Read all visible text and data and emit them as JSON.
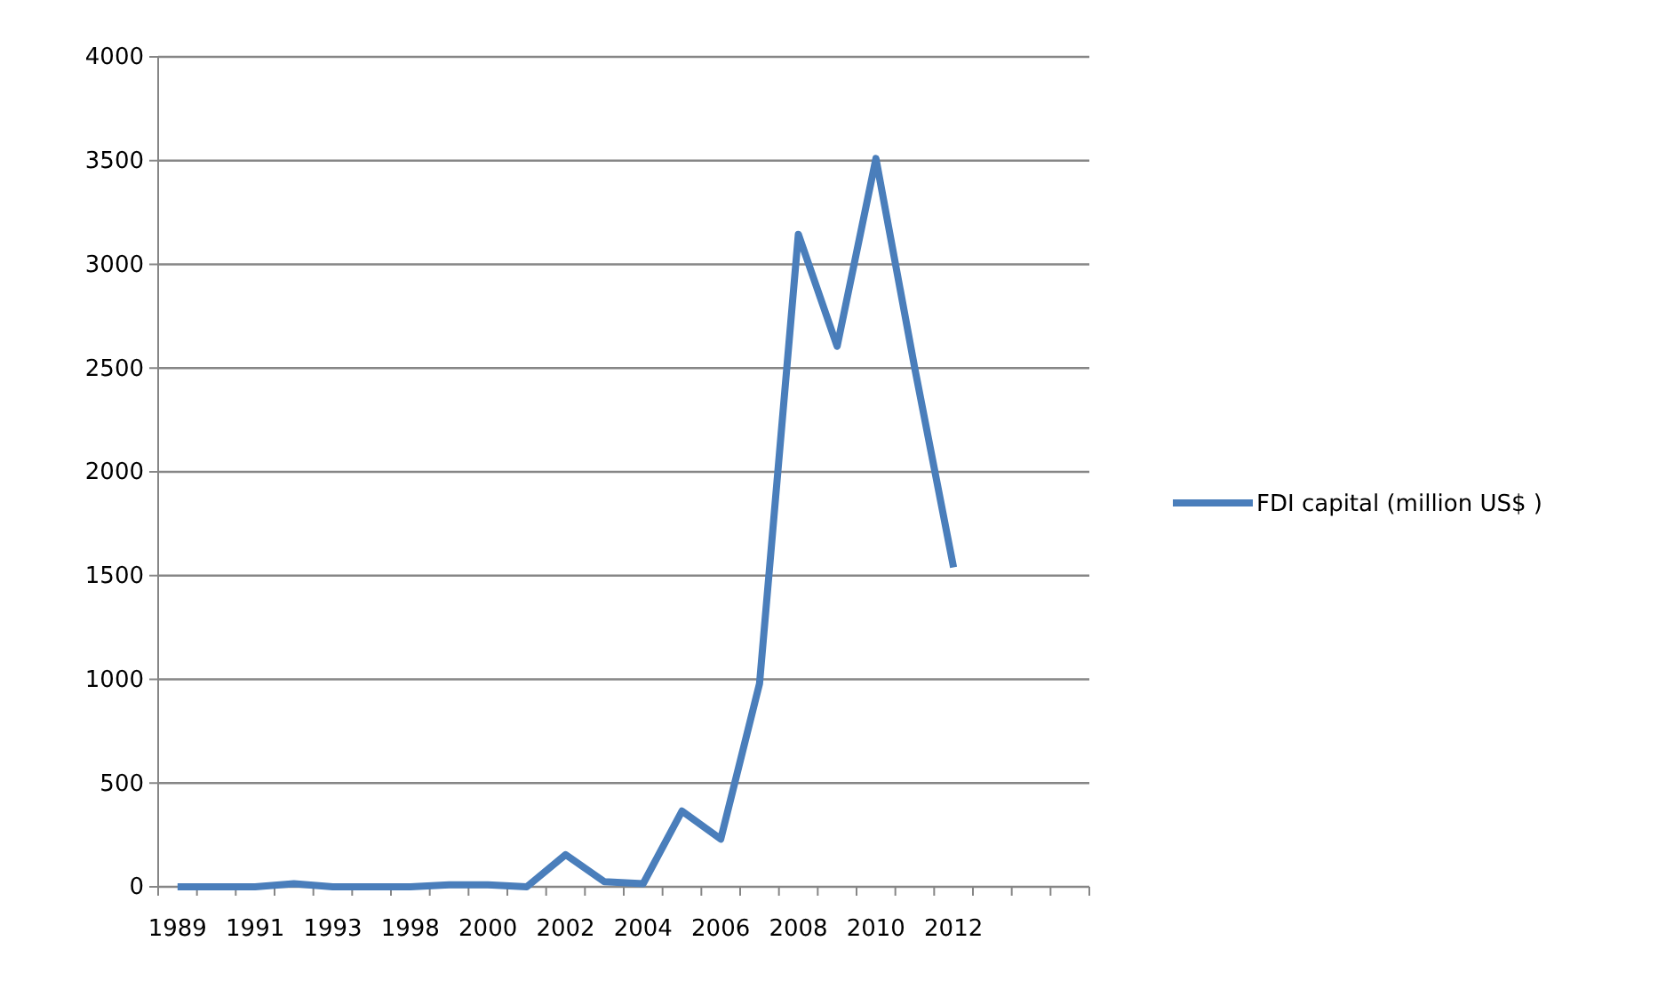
{
  "chart_data": {
    "type": "line",
    "categories": [
      "1989",
      null,
      "1991",
      null,
      "1993",
      null,
      "1998",
      null,
      "2000",
      null,
      "2002",
      null,
      "2004",
      null,
      "2006",
      null,
      "2008",
      null,
      "2010",
      null,
      "2012",
      null,
      null,
      null
    ],
    "series": [
      {
        "name": "FDI capital (million US$ )",
        "color": "#4a7ebb",
        "values": [
          0,
          0,
          0,
          15,
          0,
          0,
          0,
          10,
          10,
          0,
          155,
          25,
          15,
          365,
          230,
          980,
          3145,
          2605,
          3510,
          2500,
          1540,
          null,
          null,
          null
        ]
      }
    ],
    "ylim": [
      0,
      4000
    ],
    "yticks": [
      0,
      500,
      1000,
      1500,
      2000,
      2500,
      3000,
      3500,
      4000
    ],
    "grid": "y",
    "legend": "right",
    "marker": "none",
    "line_style": "solid"
  }
}
